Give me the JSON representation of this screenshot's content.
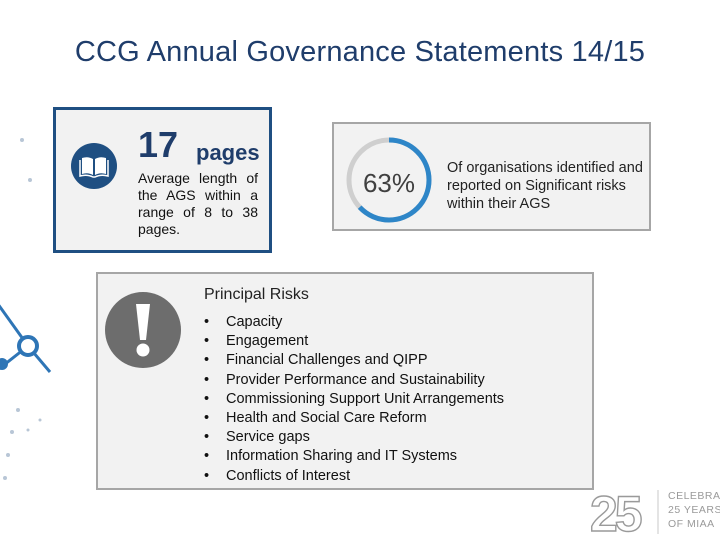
{
  "title": "CCG Annual Governance Statements 14/15",
  "stat_pages": {
    "number": "17",
    "unit": "pages",
    "description": "Average length of the AGS within a range of 8 to 38 pages.",
    "icon": "book-icon"
  },
  "stat_percent": {
    "value": "63%",
    "fraction": 0.63,
    "description": "Of organisations identified and reported on Significant risks within their AGS",
    "ring_color": "#2e86c8",
    "track_color": "#cfcfcf"
  },
  "principal_risks": {
    "heading": "Principal Risks",
    "icon": "exclamation-icon",
    "bullet": "•",
    "items": [
      "Capacity",
      "Engagement",
      "Financial Challenges and QIPP",
      "Provider Performance and Sustainability",
      "Commissioning Support Unit Arrangements",
      "Health and Social Care Reform",
      "Service gaps",
      "Information Sharing and IT Systems",
      "Conflicts of Interest"
    ]
  },
  "logo": {
    "number": "25",
    "line1": "CELEBRATING",
    "line2": "25 YEARS",
    "line3": "OF MIAA"
  },
  "colors": {
    "title": "#1f3d6b",
    "accent": "#1f4f82",
    "decoration": "#2e75b6"
  }
}
